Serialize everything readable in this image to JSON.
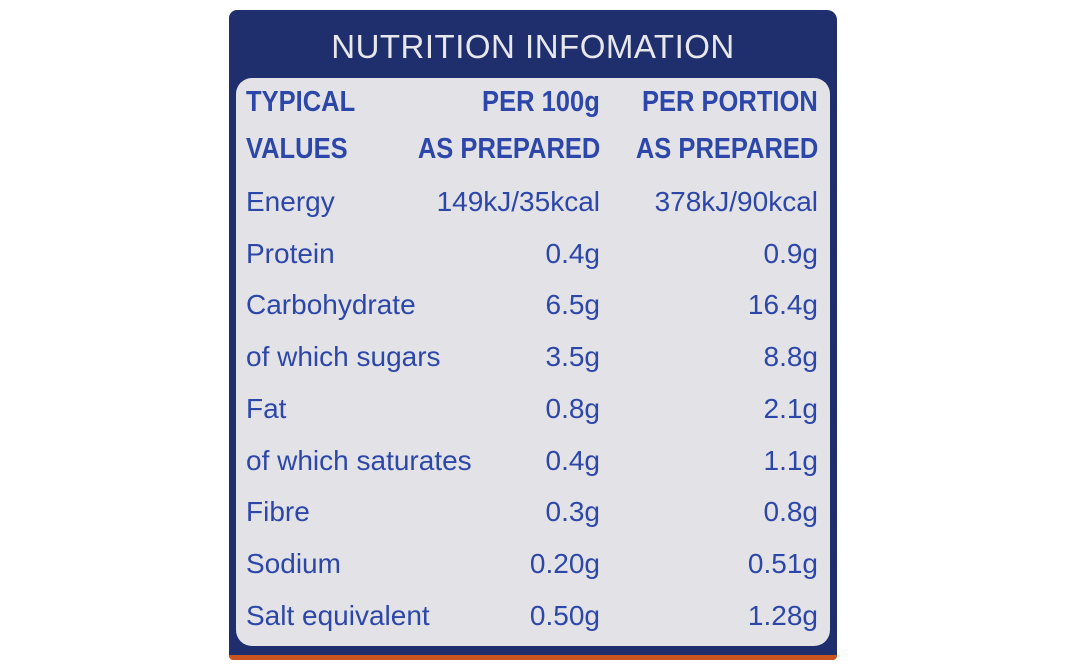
{
  "title": "NUTRITION INFOMATION",
  "headers": {
    "col1": [
      "TYPICAL",
      "VALUES"
    ],
    "col2": [
      "PER 100g",
      "AS PREPARED"
    ],
    "col3": [
      "PER PORTION",
      "AS PREPARED"
    ]
  },
  "rows": [
    {
      "name": "Energy",
      "per100g": "149kJ/35kcal",
      "portion": "378kJ/90kcal"
    },
    {
      "name": "Protein",
      "per100g": "0.4g",
      "portion": "0.9g"
    },
    {
      "name": "Carbohydrate",
      "per100g": "6.5g",
      "portion": "16.4g"
    },
    {
      "name": "of which sugars",
      "per100g": "3.5g",
      "portion": "8.8g"
    },
    {
      "name": "Fat",
      "per100g": "0.8g",
      "portion": "2.1g"
    },
    {
      "name": "of which saturates",
      "per100g": "0.4g",
      "portion": "1.1g"
    },
    {
      "name": "Fibre",
      "per100g": "0.3g",
      "portion": "0.8g"
    },
    {
      "name": "Sodium",
      "per100g": "0.20g",
      "portion": "0.51g"
    },
    {
      "name": "Salt equivalent",
      "per100g": "0.50g",
      "portion": "1.28g"
    }
  ],
  "colors": {
    "background": "#1f2f6e",
    "panel": "#e3e3e7",
    "text": "#2c47a9",
    "title": "#e8e8ec",
    "accent_strip": "#c8541f"
  }
}
